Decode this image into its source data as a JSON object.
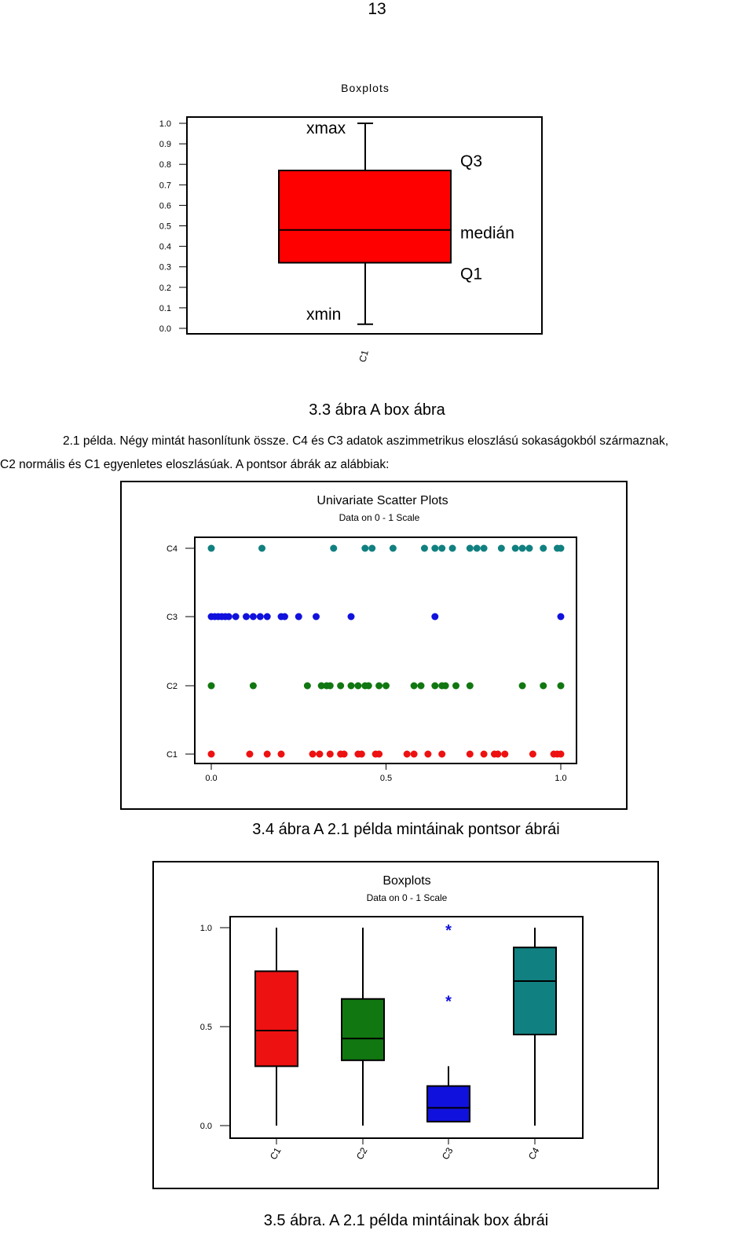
{
  "page_number": "13",
  "captions": {
    "fig33": "3.3 ábra A box ábra",
    "fig34": "3.4 ábra A 2.1 példa mintáinak pontsor ábrái",
    "fig35": "3.5 ábra. A 2.1 példa mintáinak box ábrái"
  },
  "paragraph": {
    "line1": "2.1 példa. Négy mintát hasonlítunk össze. C4 és C3 adatok aszimmetrikus eloszlású sokaságokból származnak,",
    "line2": "C2 normális és C1 egyenletes eloszlásúak. A pontsor ábrák az alábbiak:"
  },
  "colors": {
    "C1": "#ee1111",
    "C2": "#117711",
    "C3": "#1111dd",
    "C4": "#118080"
  },
  "chart_data": [
    {
      "type": "box",
      "title": "Boxplots",
      "ylim": [
        0,
        1
      ],
      "yticks": [
        "0.0",
        "0.1",
        "0.2",
        "0.3",
        "0.4",
        "0.5",
        "0.6",
        "0.7",
        "0.8",
        "0.9",
        "1.0"
      ],
      "categories": [
        "C1"
      ],
      "box": {
        "min": 0.02,
        "q1": 0.32,
        "median": 0.48,
        "q3": 0.77,
        "max": 1.0
      },
      "annotations": {
        "xmax": "xmax",
        "xmin": "xmin",
        "q3": "Q3",
        "median": "medián",
        "q1": "Q1"
      }
    },
    {
      "type": "scatter",
      "title": "Univariate Scatter Plots",
      "subtitle": "Data on 0 - 1 Scale",
      "xlim": [
        0,
        1
      ],
      "xticks": [
        "0.0",
        "0.5",
        "1.0"
      ],
      "categories": [
        "C4",
        "C3",
        "C2",
        "C1"
      ],
      "series": [
        {
          "name": "C4",
          "values": [
            0.0,
            0.145,
            0.35,
            0.44,
            0.46,
            0.52,
            0.61,
            0.64,
            0.66,
            0.69,
            0.74,
            0.76,
            0.78,
            0.83,
            0.87,
            0.89,
            0.91,
            0.95,
            0.99,
            1.0
          ]
        },
        {
          "name": "C3",
          "values": [
            0.0,
            0.01,
            0.02,
            0.03,
            0.04,
            0.05,
            0.07,
            0.1,
            0.12,
            0.14,
            0.16,
            0.2,
            0.21,
            0.25,
            0.3,
            0.4,
            0.64,
            1.0
          ]
        },
        {
          "name": "C2",
          "values": [
            0.0,
            0.12,
            0.275,
            0.315,
            0.33,
            0.34,
            0.37,
            0.4,
            0.42,
            0.44,
            0.45,
            0.48,
            0.5,
            0.58,
            0.6,
            0.64,
            0.66,
            0.67,
            0.7,
            0.74,
            0.89,
            0.95,
            1.0
          ]
        },
        {
          "name": "C1",
          "values": [
            0.0,
            0.11,
            0.16,
            0.2,
            0.29,
            0.31,
            0.34,
            0.37,
            0.38,
            0.42,
            0.43,
            0.47,
            0.48,
            0.56,
            0.58,
            0.62,
            0.66,
            0.74,
            0.78,
            0.81,
            0.82,
            0.84,
            0.92,
            0.98,
            0.99,
            1.0
          ]
        }
      ]
    },
    {
      "type": "box",
      "title": "Boxplots",
      "subtitle": "Data on 0 - 1 Scale",
      "ylim": [
        0,
        1
      ],
      "yticks": [
        "0.0",
        "0.5",
        "1.0"
      ],
      "categories": [
        "C1",
        "C2",
        "C3",
        "C4"
      ],
      "boxes": [
        {
          "name": "C1",
          "min": 0.0,
          "q1": 0.3,
          "median": 0.48,
          "q3": 0.78,
          "max": 1.0
        },
        {
          "name": "C2",
          "min": 0.0,
          "q1": 0.33,
          "median": 0.44,
          "q3": 0.64,
          "max": 1.0
        },
        {
          "name": "C3",
          "min": 0.02,
          "q1": 0.02,
          "median": 0.09,
          "q3": 0.2,
          "max": 0.3,
          "outliers": [
            0.64,
            1.0
          ]
        },
        {
          "name": "C4",
          "min": 0.0,
          "q1": 0.46,
          "median": 0.73,
          "q3": 0.9,
          "max": 1.0
        }
      ]
    }
  ]
}
